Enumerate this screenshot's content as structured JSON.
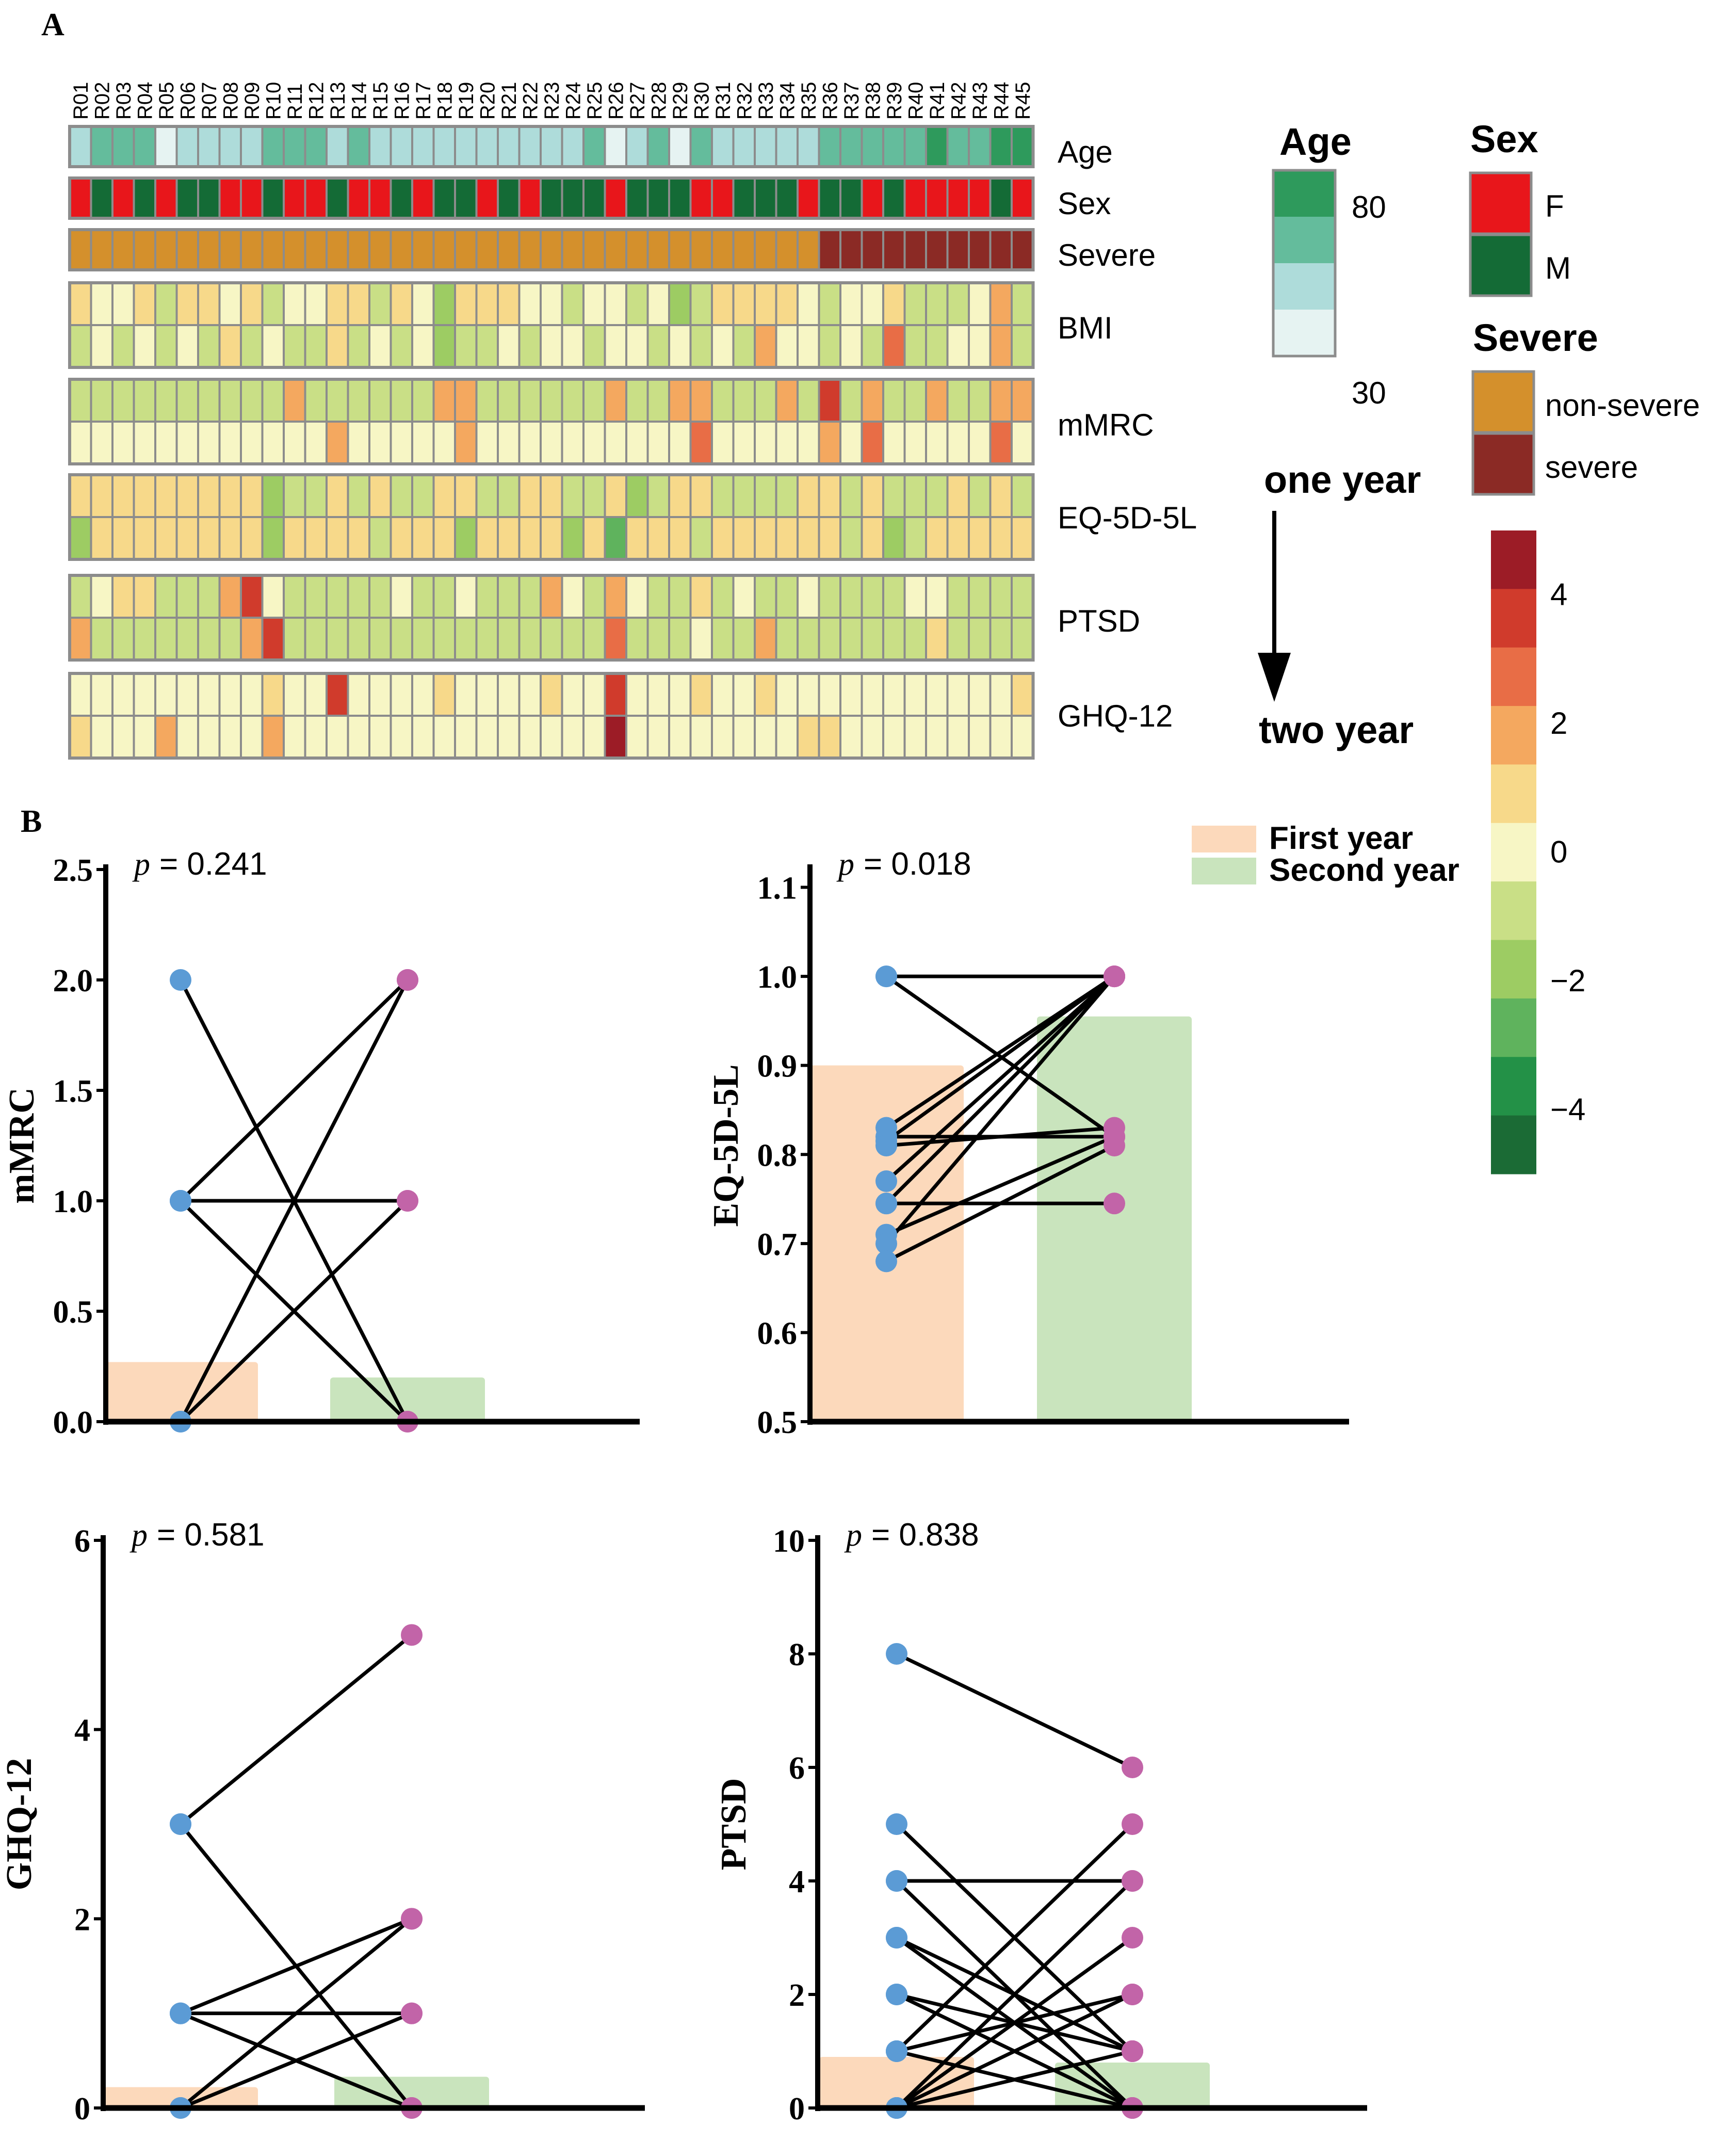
{
  "panel_labels": {
    "a": "A",
    "b": "B"
  },
  "heatmap": {
    "samples": [
      "R01",
      "R02",
      "R03",
      "R04",
      "R05",
      "R06",
      "R07",
      "R08",
      "R09",
      "R10",
      "R11",
      "R12",
      "R13",
      "R14",
      "R15",
      "R16",
      "R17",
      "R18",
      "R19",
      "R20",
      "R21",
      "R22",
      "R23",
      "R24",
      "R25",
      "R26",
      "R27",
      "R28",
      "R29",
      "R30",
      "R31",
      "R32",
      "R33",
      "R34",
      "R35",
      "R36",
      "R37",
      "R38",
      "R39",
      "R40",
      "R41",
      "R42",
      "R43",
      "R44",
      "R45"
    ],
    "annotation_rows": [
      {
        "label": "Age",
        "values": [
          52,
          55,
          55,
          55,
          30,
          48,
          48,
          48,
          52,
          68,
          55,
          55,
          52,
          55,
          52,
          52,
          48,
          52,
          45,
          45,
          52,
          52,
          42,
          48,
          68,
          38,
          52,
          58,
          30,
          55,
          52,
          52,
          48,
          48,
          45,
          58,
          58,
          58,
          70,
          70,
          72,
          70,
          62,
          78,
          78
        ]
      },
      {
        "label": "Sex",
        "values": [
          "F",
          "M",
          "F",
          "M",
          "F",
          "M",
          "M",
          "F",
          "F",
          "M",
          "F",
          "F",
          "M",
          "F",
          "F",
          "M",
          "F",
          "M",
          "M",
          "F",
          "M",
          "F",
          "M",
          "M",
          "M",
          "F",
          "M",
          "M",
          "M",
          "F",
          "F",
          "M",
          "M",
          "M",
          "F",
          "M",
          "M",
          "F",
          "M",
          "F",
          "F",
          "F",
          "F",
          "M",
          "F"
        ]
      },
      {
        "label": "Severe",
        "values": [
          "non-severe",
          "non-severe",
          "non-severe",
          "non-severe",
          "non-severe",
          "non-severe",
          "non-severe",
          "non-severe",
          "non-severe",
          "non-severe",
          "non-severe",
          "non-severe",
          "non-severe",
          "non-severe",
          "non-severe",
          "non-severe",
          "non-severe",
          "non-severe",
          "non-severe",
          "non-severe",
          "non-severe",
          "non-severe",
          "non-severe",
          "non-severe",
          "non-severe",
          "non-severe",
          "non-severe",
          "non-severe",
          "non-severe",
          "non-severe",
          "non-severe",
          "non-severe",
          "non-severe",
          "non-severe",
          "non-severe",
          "severe",
          "severe",
          "severe",
          "severe",
          "severe",
          "severe",
          "severe",
          "severe",
          "severe",
          "severe"
        ]
      }
    ],
    "score_rows": [
      {
        "label": "BMI",
        "year1": [
          0.5,
          0,
          0,
          0.5,
          -1,
          0.5,
          0.5,
          0,
          0.5,
          -1,
          0,
          0,
          0.5,
          0.5,
          -1,
          0.5,
          0,
          -2,
          0.5,
          0.5,
          0.5,
          0,
          0,
          -1,
          0,
          0,
          -1,
          0,
          -2,
          -1,
          0.5,
          1,
          1,
          1,
          0,
          -1,
          0,
          0,
          1,
          -1,
          -1,
          -1,
          0,
          2,
          -1
        ],
        "year2": [
          -1,
          0,
          -1,
          0,
          -1,
          0,
          -1,
          0.5,
          -1,
          0,
          -1,
          -1,
          0.5,
          -1,
          0,
          -1,
          0,
          -2,
          -1,
          -1,
          0,
          -1,
          0,
          0,
          -1,
          0,
          0,
          -1,
          0,
          -1,
          0,
          -1,
          2,
          0,
          0,
          -1,
          0,
          -1,
          3,
          -1,
          -1,
          0,
          0,
          2,
          -1
        ]
      },
      {
        "label": "mMRC",
        "year1": [
          -1,
          -1,
          -1,
          -1,
          -1,
          -1,
          -1,
          -1,
          -1,
          -1,
          2,
          -1,
          -1,
          -1,
          -1,
          -1,
          -1,
          2,
          2,
          -1,
          -1,
          -1,
          -1,
          -1,
          -1,
          2,
          -1,
          -1,
          2,
          2,
          -1,
          -1,
          -1,
          2,
          -1,
          4,
          -1,
          2,
          -1,
          -1,
          2,
          -1,
          -1,
          2,
          2
        ],
        "year2": [
          0,
          0,
          0,
          0,
          0,
          0,
          0,
          0,
          0,
          0,
          0,
          0,
          2,
          0,
          0,
          0,
          0,
          0,
          2,
          0,
          0,
          0,
          0,
          0,
          0,
          0,
          0,
          0,
          0,
          3,
          0,
          0,
          0,
          0,
          0,
          2,
          0,
          3,
          0,
          0,
          0,
          0,
          0,
          3,
          0
        ]
      },
      {
        "label": "EQ-5D-5L",
        "year1": [
          1,
          1,
          1,
          1,
          1,
          1,
          1,
          1,
          1,
          -2,
          -1,
          -1,
          1,
          -1,
          1,
          -1,
          -1,
          1,
          1,
          -1,
          -1,
          1,
          1,
          -1,
          -1,
          1,
          -2,
          -1,
          1,
          1,
          -1,
          -1,
          -1,
          -1,
          1,
          1,
          -1,
          1,
          -1,
          -1,
          -1,
          1,
          -1,
          1,
          -1
        ],
        "year2": [
          -2,
          1,
          1,
          1,
          1,
          1,
          1,
          1,
          1,
          -2,
          1,
          1,
          1,
          1,
          -1,
          1,
          1,
          1,
          -2,
          1,
          1,
          1,
          1,
          -2,
          1,
          -3,
          1,
          1,
          1,
          -1,
          1,
          1,
          1,
          1,
          1,
          1,
          -1,
          1,
          -2,
          -1,
          1,
          1,
          1,
          1,
          1
        ]
      },
      {
        "label": "PTSD",
        "year1": [
          -1,
          0,
          1,
          1,
          -1,
          -1,
          -1,
          2,
          4,
          0,
          -1,
          -1,
          -1,
          -1,
          -1,
          0,
          -1,
          -1,
          0,
          -1,
          -1,
          -1,
          2,
          0,
          -1,
          2,
          0,
          -1,
          -1,
          1,
          -1,
          0,
          -1,
          -1,
          0,
          -1,
          -1,
          -1,
          -1,
          0,
          0,
          -1,
          -1,
          -1,
          -1
        ],
        "year2": [
          2,
          -1,
          -1,
          -1,
          -1,
          -1,
          -1,
          -1,
          2,
          4,
          -1,
          -1,
          -1,
          -1,
          -1,
          -1,
          -1,
          -1,
          -1,
          -1,
          -1,
          -1,
          -1,
          -1,
          -1,
          3,
          -1,
          -1,
          -1,
          0,
          -1,
          -1,
          2,
          -1,
          -1,
          -1,
          -1,
          -1,
          -1,
          -1,
          1,
          -1,
          -1,
          -1,
          -1
        ]
      },
      {
        "label": "GHQ-12",
        "year1": [
          0,
          0,
          0,
          0,
          0,
          0,
          0,
          0,
          0,
          1,
          0,
          0,
          4,
          0,
          0,
          0,
          0,
          1,
          0,
          0,
          0,
          0,
          1,
          0,
          0,
          4,
          0,
          0,
          0,
          1,
          0,
          0,
          1,
          0,
          0,
          0,
          0,
          0,
          0,
          0,
          0,
          0,
          0,
          0,
          1
        ],
        "year2": [
          1,
          0,
          0,
          0,
          2,
          0,
          0,
          0,
          0,
          2,
          0,
          0,
          0,
          0,
          0,
          0,
          0,
          0,
          0,
          0,
          0,
          0,
          0,
          0,
          0,
          5,
          0,
          0,
          0,
          0,
          0,
          0,
          0,
          0,
          1,
          1,
          0,
          0,
          0,
          0,
          0,
          0,
          0,
          0,
          0
        ]
      }
    ],
    "time_labels": {
      "start": "one year",
      "end": "two year"
    },
    "legend_age": {
      "title": "Age",
      "max_label": "80",
      "min_label": "30",
      "range": [
        30,
        80
      ]
    },
    "legend_sex": {
      "title": "Sex",
      "items": [
        {
          "label": "F",
          "color": "#e8161b"
        },
        {
          "label": "M",
          "color": "#146b36"
        }
      ]
    },
    "legend_severe": {
      "title": "Severe",
      "items": [
        {
          "label": "non-severe",
          "color": "#d4902c"
        },
        {
          "label": "severe",
          "color": "#8b2a25"
        }
      ]
    },
    "colorbar": {
      "ticks": [
        "4",
        "2",
        "0",
        "−2",
        "−4"
      ],
      "tick_values": [
        4,
        2,
        0,
        -2,
        -4
      ],
      "range": [
        -5,
        5
      ],
      "colors": [
        "#1b6b35",
        "#239147",
        "#5fb35d",
        "#9dcc63",
        "#c9df86",
        "#f7f6c5",
        "#f7d98a",
        "#f4a85f",
        "#e86d46",
        "#d03b2c",
        "#9c1c26"
      ]
    }
  },
  "chart_data": [
    {
      "type": "bar",
      "ylabel": "mMRC",
      "ylim": [
        0,
        2.5
      ],
      "yticks": [
        "0.0",
        "0.5",
        "1.0",
        "1.5",
        "2.0",
        "2.5"
      ],
      "ytick_values": [
        0,
        0.5,
        1,
        1.5,
        2,
        2.5
      ],
      "p_prefix": "p",
      "p_text": "= 0.241",
      "categories": [
        "First year",
        "Second year"
      ],
      "values": [
        0.27,
        0.2
      ],
      "pairs": [
        [
          2,
          0
        ],
        [
          1,
          2
        ],
        [
          1,
          1
        ],
        [
          0,
          2
        ],
        [
          0,
          1
        ],
        [
          1,
          0
        ]
      ]
    },
    {
      "type": "bar",
      "ylabel": "EQ-5D-5L",
      "ylim": [
        0.5,
        1.12
      ],
      "yticks": [
        "0.5",
        "0.6",
        "0.7",
        "0.8",
        "0.9",
        "1.0",
        "1.1"
      ],
      "ytick_values": [
        0.5,
        0.6,
        0.7,
        0.8,
        0.9,
        1.0,
        1.1
      ],
      "p_prefix": "p",
      "p_text": "= 0.018",
      "categories": [
        "First year",
        "Second year"
      ],
      "values": [
        0.9,
        0.955
      ],
      "pairs": [
        [
          1.0,
          1.0
        ],
        [
          1.0,
          0.82
        ],
        [
          0.83,
          1.0
        ],
        [
          0.82,
          0.82
        ],
        [
          0.815,
          1.0
        ],
        [
          0.81,
          0.83
        ],
        [
          0.77,
          1.0
        ],
        [
          0.745,
          1.0
        ],
        [
          0.745,
          0.745
        ],
        [
          0.71,
          0.82
        ],
        [
          0.7,
          1.0
        ],
        [
          0.68,
          0.81
        ]
      ]
    },
    {
      "type": "bar",
      "ylabel": "GHQ-12",
      "ylim": [
        0,
        6
      ],
      "yticks": [
        "0",
        "2",
        "4",
        "6"
      ],
      "ytick_values": [
        0,
        2,
        4,
        6
      ],
      "p_prefix": "p",
      "p_text": "= 0.581",
      "categories": [
        "First year",
        "Second year"
      ],
      "values": [
        0.22,
        0.33
      ],
      "pairs": [
        [
          3,
          5
        ],
        [
          3,
          0
        ],
        [
          1,
          1
        ],
        [
          1,
          0
        ],
        [
          0,
          2
        ],
        [
          0,
          1
        ],
        [
          1,
          2
        ]
      ]
    },
    {
      "type": "bar",
      "ylabel": "PTSD",
      "ylim": [
        0,
        10
      ],
      "yticks": [
        "0",
        "2",
        "4",
        "6",
        "8",
        "10"
      ],
      "ytick_values": [
        0,
        2,
        4,
        6,
        8,
        10
      ],
      "p_prefix": "p",
      "p_text": "= 0.838",
      "categories": [
        "First year",
        "Second year"
      ],
      "values": [
        0.9,
        0.8
      ],
      "pairs": [
        [
          8,
          6
        ],
        [
          5,
          1
        ],
        [
          4,
          4
        ],
        [
          4,
          0
        ],
        [
          3,
          1
        ],
        [
          3,
          0
        ],
        [
          2,
          0
        ],
        [
          1,
          5
        ],
        [
          1,
          2
        ],
        [
          0,
          4
        ],
        [
          0,
          3
        ],
        [
          0,
          2
        ],
        [
          0,
          1
        ],
        [
          1,
          0
        ],
        [
          2,
          1
        ],
        [
          0,
          0
        ]
      ]
    }
  ],
  "legend_b": {
    "items": [
      {
        "label": "First year",
        "color": "#fcd9bb"
      },
      {
        "label": "Second year",
        "color": "#c9e4bd"
      }
    ]
  },
  "colors": {
    "first_point": "#5b9bd5",
    "second_point": "#c264a8",
    "line": "#000000",
    "cell_border": "#8c8c8c"
  }
}
